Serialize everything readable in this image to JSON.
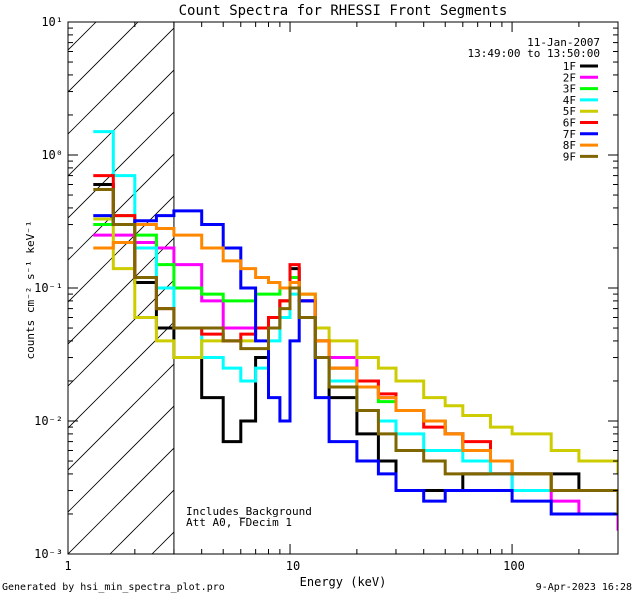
{
  "chart_data": {
    "type": "line",
    "title": "Count Spectra for RHESSI Front Segments",
    "xlabel": "Energy (keV)",
    "ylabel": "counts cm⁻² s⁻¹ keV⁻¹",
    "xscale": "log",
    "yscale": "log",
    "xlim": [
      1,
      300
    ],
    "ylim": [
      0.001,
      10
    ],
    "x_tick_labels": [
      "1",
      "10",
      "100"
    ],
    "y_tick_labels": [
      "10⁻³",
      "10⁻²",
      "10⁻¹",
      "10⁰",
      "10¹"
    ],
    "y_tick_values": [
      0.001,
      0.01,
      0.1,
      1,
      10
    ],
    "x_tick_values": [
      1,
      10,
      100
    ],
    "shaded_region_keV": [
      1,
      3
    ],
    "date": "11-Jan-2007",
    "time_range": "13:49:00 to 13:50:00",
    "notes": [
      "Includes_Background",
      "Att A0, FDecim 1"
    ],
    "series": [
      {
        "name": "1F",
        "color": "#000000",
        "x": [
          1.3,
          1.6,
          2.0,
          2.5,
          3.0,
          4.0,
          5.0,
          6.0,
          7.0,
          8.0,
          9.0,
          10.0,
          11.0,
          13.0,
          15.0,
          20.0,
          25.0,
          30.0,
          40.0,
          50.0,
          60.0,
          80.0,
          100.0,
          150.0,
          200.0,
          300.0
        ],
        "values": [
          0.6,
          0.3,
          0.11,
          0.05,
          0.03,
          0.015,
          0.007,
          0.01,
          0.03,
          0.05,
          0.08,
          0.14,
          0.08,
          0.03,
          0.015,
          0.008,
          0.005,
          0.003,
          0.003,
          0.003,
          0.004,
          0.004,
          0.004,
          0.004,
          0.003,
          0.003
        ]
      },
      {
        "name": "2F",
        "color": "#ff00ff",
        "x": [
          1.3,
          1.6,
          2.0,
          2.5,
          3.0,
          4.0,
          5.0,
          6.0,
          7.0,
          8.0,
          9.0,
          10.0,
          11.0,
          13.0,
          15.0,
          20.0,
          25.0,
          30.0,
          40.0,
          50.0,
          60.0,
          80.0,
          100.0,
          150.0,
          200.0,
          300.0
        ],
        "values": [
          0.25,
          0.25,
          0.22,
          0.2,
          0.15,
          0.08,
          0.05,
          0.05,
          0.05,
          0.06,
          0.08,
          0.12,
          0.08,
          0.04,
          0.03,
          0.02,
          0.015,
          0.012,
          0.01,
          0.008,
          0.006,
          0.004,
          0.003,
          0.0025,
          0.002,
          0.0015
        ]
      },
      {
        "name": "3F",
        "color": "#00ff00",
        "x": [
          1.3,
          1.6,
          2.0,
          2.5,
          3.0,
          4.0,
          5.0,
          6.0,
          7.0,
          8.0,
          9.0,
          10.0,
          11.0,
          13.0,
          15.0,
          20.0,
          25.0,
          30.0,
          40.0,
          50.0,
          60.0,
          80.0,
          100.0,
          150.0,
          200.0,
          300.0
        ],
        "values": [
          0.3,
          0.35,
          0.25,
          0.15,
          0.1,
          0.09,
          0.08,
          0.08,
          0.09,
          0.09,
          0.1,
          0.12,
          0.09,
          0.04,
          0.025,
          0.018,
          0.014,
          0.012,
          0.01,
          0.008,
          0.006,
          0.005,
          0.004,
          0.003,
          0.003,
          0.002
        ]
      },
      {
        "name": "4F",
        "color": "#00ffff",
        "x": [
          1.3,
          1.6,
          2.0,
          2.5,
          3.0,
          4.0,
          5.0,
          6.0,
          7.0,
          8.0,
          9.0,
          10.0,
          11.0,
          13.0,
          15.0,
          20.0,
          25.0,
          30.0,
          40.0,
          50.0,
          60.0,
          80.0,
          100.0,
          150.0,
          200.0,
          300.0
        ],
        "values": [
          1.5,
          0.7,
          0.2,
          0.1,
          0.05,
          0.03,
          0.025,
          0.02,
          0.025,
          0.04,
          0.06,
          0.09,
          0.06,
          0.03,
          0.02,
          0.012,
          0.01,
          0.008,
          0.006,
          0.006,
          0.005,
          0.004,
          0.003,
          0.003,
          0.003,
          0.002
        ]
      },
      {
        "name": "5F",
        "color": "#cccc00",
        "x": [
          1.3,
          1.6,
          2.0,
          2.5,
          3.0,
          4.0,
          5.0,
          6.0,
          7.0,
          8.0,
          9.0,
          10.0,
          11.0,
          13.0,
          15.0,
          20.0,
          25.0,
          30.0,
          40.0,
          50.0,
          60.0,
          80.0,
          100.0,
          150.0,
          200.0,
          300.0
        ],
        "values": [
          0.33,
          0.14,
          0.06,
          0.04,
          0.03,
          0.04,
          0.04,
          0.04,
          0.05,
          0.06,
          0.08,
          0.1,
          0.09,
          0.05,
          0.04,
          0.03,
          0.025,
          0.02,
          0.015,
          0.013,
          0.011,
          0.009,
          0.008,
          0.006,
          0.005,
          0.004
        ]
      },
      {
        "name": "6F",
        "color": "#ff0000",
        "x": [
          1.3,
          1.6,
          2.0,
          2.5,
          3.0,
          4.0,
          5.0,
          6.0,
          7.0,
          8.0,
          9.0,
          10.0,
          11.0,
          13.0,
          15.0,
          20.0,
          25.0,
          30.0,
          40.0,
          50.0,
          60.0,
          80.0,
          100.0,
          150.0,
          200.0,
          300.0
        ],
        "values": [
          0.7,
          0.35,
          0.12,
          0.07,
          0.05,
          0.045,
          0.04,
          0.045,
          0.05,
          0.06,
          0.08,
          0.15,
          0.08,
          0.04,
          0.025,
          0.02,
          0.016,
          0.012,
          0.009,
          0.008,
          0.007,
          0.005,
          0.004,
          0.003,
          0.003,
          0.002
        ]
      },
      {
        "name": "7F",
        "color": "#0000ff",
        "x": [
          1.3,
          1.6,
          2.0,
          2.5,
          3.0,
          4.0,
          5.0,
          6.0,
          7.0,
          8.0,
          9.0,
          10.0,
          11.0,
          13.0,
          15.0,
          20.0,
          25.0,
          30.0,
          40.0,
          50.0,
          60.0,
          80.0,
          100.0,
          150.0,
          200.0,
          300.0
        ],
        "values": [
          0.35,
          0.3,
          0.32,
          0.35,
          0.38,
          0.3,
          0.2,
          0.1,
          0.04,
          0.015,
          0.01,
          0.04,
          0.08,
          0.015,
          0.007,
          0.005,
          0.004,
          0.003,
          0.0025,
          0.003,
          0.003,
          0.003,
          0.0025,
          0.002,
          0.002,
          0.002
        ]
      },
      {
        "name": "8F",
        "color": "#ff8800",
        "x": [
          1.3,
          1.6,
          2.0,
          2.5,
          3.0,
          4.0,
          5.0,
          6.0,
          7.0,
          8.0,
          9.0,
          10.0,
          11.0,
          13.0,
          15.0,
          20.0,
          25.0,
          30.0,
          40.0,
          50.0,
          60.0,
          80.0,
          100.0,
          150.0,
          200.0,
          300.0
        ],
        "values": [
          0.2,
          0.22,
          0.3,
          0.28,
          0.25,
          0.2,
          0.16,
          0.14,
          0.12,
          0.11,
          0.1,
          0.11,
          0.09,
          0.04,
          0.025,
          0.018,
          0.015,
          0.012,
          0.01,
          0.008,
          0.006,
          0.005,
          0.004,
          0.003,
          0.003,
          0.002
        ]
      },
      {
        "name": "9F",
        "color": "#806600",
        "x": [
          1.3,
          1.6,
          2.0,
          2.5,
          3.0,
          4.0,
          5.0,
          6.0,
          7.0,
          8.0,
          9.0,
          10.0,
          11.0,
          13.0,
          15.0,
          20.0,
          25.0,
          30.0,
          40.0,
          50.0,
          60.0,
          80.0,
          100.0,
          150.0,
          200.0,
          300.0
        ],
        "values": [
          0.55,
          0.3,
          0.12,
          0.07,
          0.05,
          0.05,
          0.04,
          0.035,
          0.035,
          0.05,
          0.07,
          0.1,
          0.06,
          0.03,
          0.018,
          0.012,
          0.008,
          0.006,
          0.005,
          0.004,
          0.004,
          0.004,
          0.004,
          0.003,
          0.003,
          0.002
        ]
      }
    ]
  },
  "footer": {
    "left": "Generated by hsi_min_spectra_plot.pro",
    "right": "9-Apr-2023 16:28"
  }
}
